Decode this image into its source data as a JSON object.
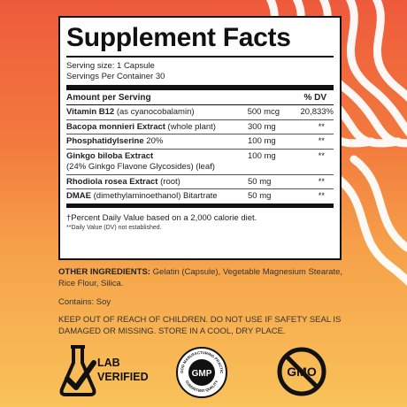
{
  "panel": {
    "title": "Supplement Facts",
    "serving_size": "Serving size: 1 Capsule",
    "servings_per_container": "Servings Per Container 30",
    "col_amount": "Amount per Serving",
    "col_dv": "% DV",
    "rows": [
      {
        "name_bold": "Vitamin B12",
        "name_rest": " (as cyanocobalamin)",
        "amount": "500 mcg",
        "dv": "20,833%"
      },
      {
        "name_bold": "Bacopa monnieri Extract",
        "name_rest": " (whole plant)",
        "amount": "300 mg",
        "dv": "**"
      },
      {
        "name_bold": "Phosphatidylserine",
        "name_rest": " 20%",
        "amount": "100 mg",
        "dv": "**"
      },
      {
        "name_bold": "Ginkgo biloba Extract",
        "name_rest": "",
        "name_line2": "(24% Ginkgo Flavone Glycosides) (leaf)",
        "amount": "100 mg",
        "dv": "**"
      },
      {
        "name_bold": "Rhodiola rosea Extract",
        "name_rest": " (root)",
        "amount": "50 mg",
        "dv": "**"
      },
      {
        "name_bold": "DMAE",
        "name_rest": " (dimethylaminoethanol) Bitartrate",
        "amount": "50 mg",
        "dv": "**"
      }
    ],
    "footnote1": "†Percent Daily Value based on a 2,000 calorie diet.",
    "footnote2": "**Daily Value (DV) not established."
  },
  "other_ingredients": {
    "label": "OTHER INGREDIENTS:",
    "text": " Gelatin (Capsule), Vegetable Magnesium Stearate, Rice Flour, Silica."
  },
  "contains": "Contains: Soy",
  "warning": "KEEP OUT OF REACH OF CHILDREN. DO NOT USE IF SAFETY SEAL IS DAMAGED OR MISSING. STORE IN A COOL, DRY PLACE.",
  "badges": {
    "lab_line1": "LAB",
    "lab_line2": "VERIFIED",
    "gmp_text": "GMP",
    "gmp_ring_top": "GOOD MANUFACTURING PRACTICE",
    "gmp_ring_bottom": "CONSISTENT QUALITY",
    "gmo_text": "GMO"
  },
  "colors": {
    "bg_top": "#ee5a3c",
    "bg_bottom": "#f9c25a",
    "panel": "#ffffff",
    "ink": "#111111"
  },
  "icons": [
    "lab-flask-check-icon",
    "gmp-seal-icon",
    "no-gmo-icon"
  ]
}
